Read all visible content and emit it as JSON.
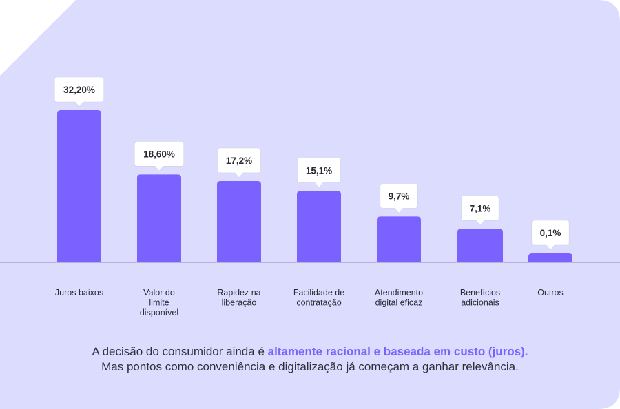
{
  "colors": {
    "card_background": "#dcdcff",
    "bar": "#7b61ff",
    "baseline": "#8c8aa6",
    "callout_background": "#ffffff",
    "highlight_text": "#7b61ff"
  },
  "caption": {
    "line1_prefix": "A decisão do consumidor ainda é ",
    "line1_highlight": "altamente racional e baseada em custo (juros).",
    "line2": "Mas pontos como conveniência e digitalização já começam a ganhar relevância."
  },
  "chart_data": {
    "type": "bar",
    "categories": [
      [
        "Juros baixos"
      ],
      [
        "Valor do",
        "limite",
        "disponível"
      ],
      [
        "Rapidez na",
        "liberação"
      ],
      [
        "Facilidade de",
        "contratação"
      ],
      [
        "Atendimento",
        "digital eficaz"
      ],
      [
        "Benefícios",
        "adicionais"
      ],
      [
        "Outros"
      ]
    ],
    "values": [
      32.2,
      18.6,
      17.2,
      15.1,
      9.7,
      7.1,
      0.1
    ],
    "value_labels": [
      "32,20%",
      "18,60%",
      "17,2%",
      "15,1%",
      "9,7%",
      "7,1%",
      "0,1%"
    ],
    "unit": "%",
    "ylim": [
      0,
      32.2
    ],
    "grid": false,
    "legend": "none"
  }
}
